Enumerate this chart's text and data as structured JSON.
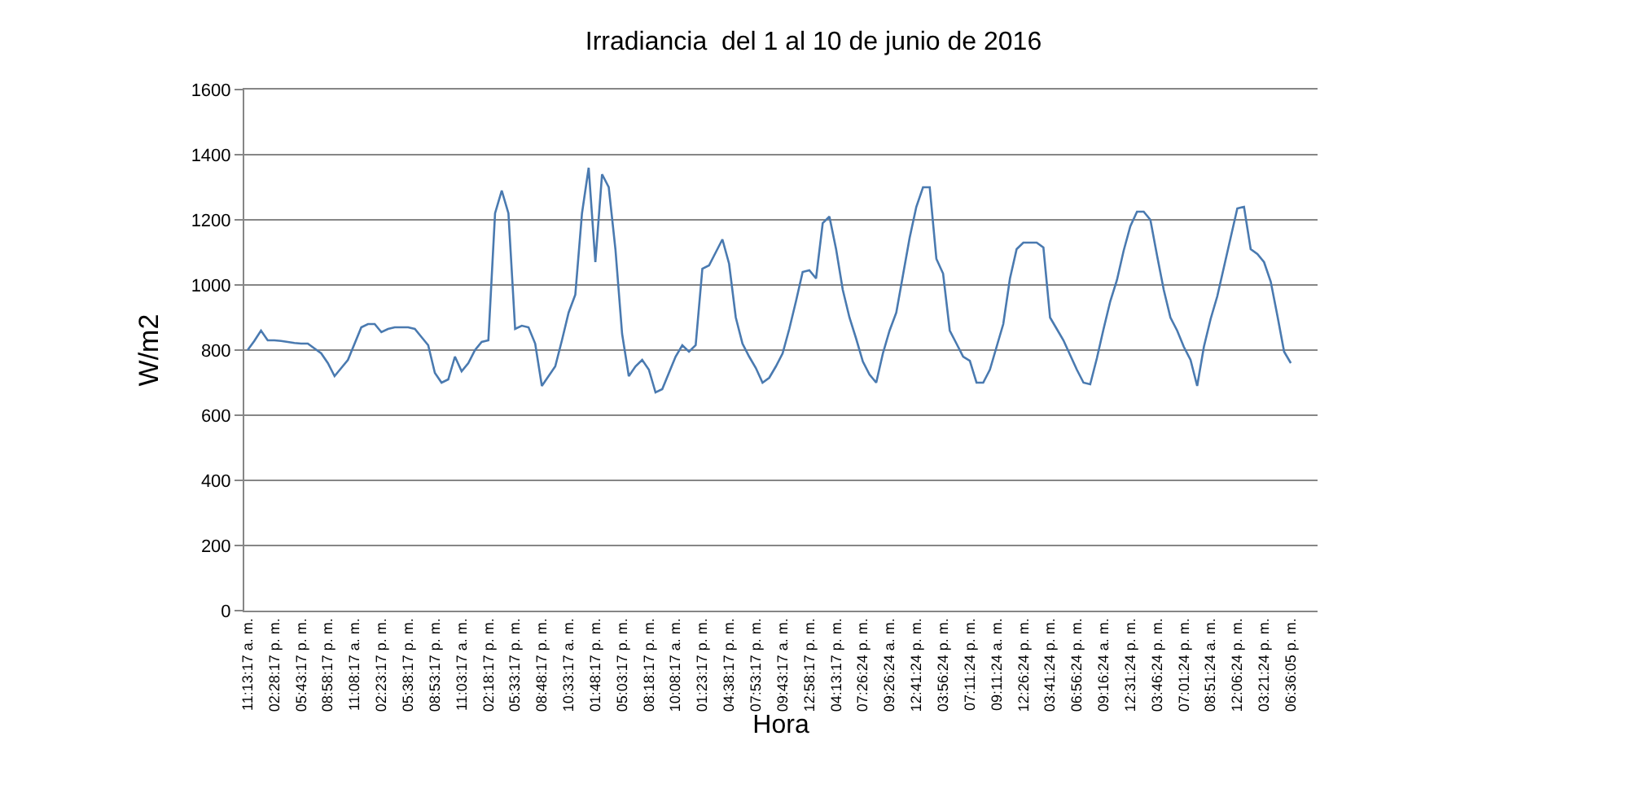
{
  "chart_data": {
    "type": "line",
    "title": "Irradiancia  del 1 al 10 de junio de 2016",
    "xlabel": "Hora",
    "ylabel": "W/m2",
    "categories": [
      "11:13:17 a. m.",
      null,
      null,
      null,
      "02:28:17 p. m.",
      null,
      null,
      null,
      "05:43:17 p. m.",
      null,
      null,
      null,
      "08:58:17 p. m.",
      null,
      null,
      null,
      "11:08:17 a. m.",
      null,
      null,
      null,
      "02:23:17 p. m.",
      null,
      null,
      null,
      "05:38:17 p. m.",
      null,
      null,
      null,
      "08:53:17 p. m.",
      null,
      null,
      null,
      "11:03:17 a. m.",
      null,
      null,
      null,
      "02:18:17 p. m.",
      null,
      null,
      null,
      "05:33:17 p. m.",
      null,
      null,
      null,
      "08:48:17 p. m.",
      null,
      null,
      null,
      "10:33:17 a. m.",
      null,
      null,
      null,
      "01:48:17 p. m.",
      null,
      null,
      null,
      "05:03:17 p. m.",
      null,
      null,
      null,
      "08:18:17 p. m.",
      null,
      null,
      null,
      "10:08:17 a. m.",
      null,
      null,
      null,
      "01:23:17 p. m.",
      null,
      null,
      null,
      "04:38:17 p. m.",
      null,
      null,
      null,
      "07:53:17 p. m.",
      null,
      null,
      null,
      "09:43:17 a. m.",
      null,
      null,
      null,
      "12:58:17 p. m.",
      null,
      null,
      null,
      "04:13:17 p. m.",
      null,
      null,
      null,
      "07:26:24 p. m.",
      null,
      null,
      null,
      "09:26:24 a. m.",
      null,
      null,
      null,
      "12:41:24 p. m.",
      null,
      null,
      null,
      "03:56:24 p. m.",
      null,
      null,
      null,
      "07:11:24 p. m.",
      null,
      null,
      null,
      "09:11:24 a. m.",
      null,
      null,
      null,
      "12:26:24 p. m.",
      null,
      null,
      null,
      "03:41:24 p. m.",
      null,
      null,
      null,
      "06:56:24 p. m.",
      null,
      null,
      null,
      "09:16:24 a. m.",
      null,
      null,
      null,
      "12:31:24 p. m.",
      null,
      null,
      null,
      "03:46:24 p. m.",
      null,
      null,
      null,
      "07:01:24 p. m.",
      null,
      null,
      null,
      "08:51:24 a. m.",
      null,
      null,
      null,
      "12:06:24 p. m.",
      null,
      null,
      null,
      "03:21:24 p. m.",
      null,
      null,
      null,
      "06:36:05 p. m."
    ],
    "series": [
      {
        "color": "#4a7ab0",
        "values": [
          800,
          828,
          860,
          830,
          830,
          828,
          825,
          822,
          820,
          820,
          805,
          790,
          760,
          720,
          745,
          770,
          820,
          870,
          880,
          880,
          855,
          865,
          870,
          870,
          870,
          865,
          840,
          815,
          730,
          700,
          710,
          780,
          735,
          760,
          800,
          825,
          830,
          1220,
          1290,
          1220,
          865,
          875,
          870,
          820,
          690,
          720,
          750,
          830,
          915,
          970,
          1220,
          1360,
          1070,
          1340,
          1300,
          1110,
          850,
          720,
          750,
          770,
          740,
          670,
          680,
          730,
          780,
          815,
          795,
          815,
          1050,
          1060,
          1100,
          1140,
          1065,
          900,
          820,
          780,
          745,
          700,
          715,
          750,
          790,
          865,
          950,
          1040,
          1045,
          1020,
          1190,
          1210,
          1110,
          985,
          900,
          835,
          765,
          725,
          700,
          790,
          860,
          915,
          1030,
          1145,
          1240,
          1300,
          1300,
          1080,
          1035,
          860,
          820,
          780,
          767,
          700,
          700,
          740,
          810,
          880,
          1020,
          1110,
          1130,
          1130,
          1130,
          1115,
          900,
          865,
          830,
          785,
          740,
          700,
          695,
          775,
          865,
          950,
          1015,
          1105,
          1180,
          1225,
          1225,
          1200,
          1090,
          985,
          900,
          860,
          810,
          770,
          690,
          810,
          895,
          965,
          1055,
          1145,
          1235,
          1240,
          1110,
          1095,
          1070,
          1010,
          905,
          795,
          760
        ]
      }
    ],
    "ylim": [
      0,
      1600
    ],
    "yticks": [
      0,
      200,
      400,
      600,
      800,
      1000,
      1200,
      1400,
      1600
    ],
    "grid": "y",
    "marker": "none",
    "line_style": "solid"
  }
}
